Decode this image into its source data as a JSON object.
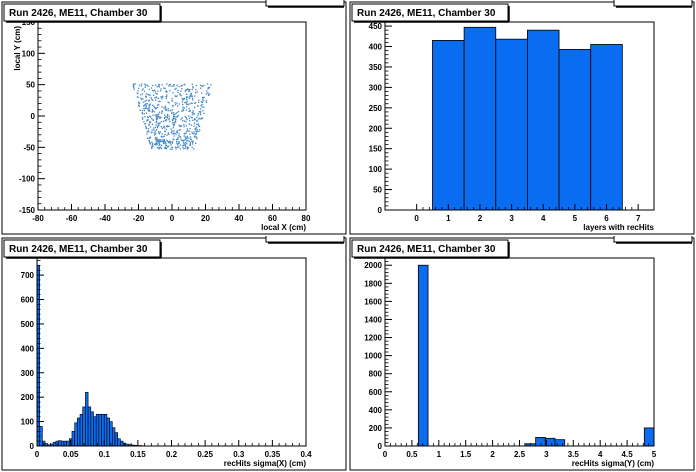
{
  "chart_data": [
    {
      "type": "scatter",
      "title": "Run 2426, ME11, Chamber 30",
      "xlabel": "local X (cm)",
      "ylabel": "local Y (cm)",
      "xlim": [
        -80,
        80
      ],
      "ylim": [
        -150,
        150
      ],
      "xticks": [
        -80,
        -60,
        -40,
        -20,
        0,
        20,
        40,
        60,
        80
      ],
      "yticks": [
        -150,
        -100,
        -50,
        0,
        50,
        100,
        150
      ],
      "stats_box": "recHitsXY",
      "grid": false,
      "point_color": "#3f86c9",
      "region": {
        "y_top": 53,
        "y_bottom": -52,
        "x_half_top": 24,
        "x_half_bottom": 13
      }
    },
    {
      "type": "bar",
      "title": "Run 2426, ME11, Chamber 30",
      "xlabel": "layers with recHits",
      "ylabel": "",
      "xlim": [
        -1,
        7.5
      ],
      "ylim": [
        0,
        460
      ],
      "xticks": [
        0,
        1,
        2,
        3,
        4,
        5,
        6,
        7
      ],
      "yticks": [
        0,
        50,
        100,
        150,
        200,
        250,
        300,
        350,
        400,
        450
      ],
      "stats_box": "nRecHits",
      "grid": false,
      "bin_edges": [
        0.5,
        1.5,
        2.5,
        3.5,
        4.5,
        5.5,
        6.5
      ],
      "values": [
        415,
        447,
        418,
        440,
        393,
        405
      ],
      "fill_color": "#0a6cf0"
    },
    {
      "type": "bar",
      "title": "Run 2426, ME11, Chamber 30",
      "xlabel": "recHits sigma(X) (cm)",
      "ylabel": "",
      "xlim": [
        0,
        0.4
      ],
      "ylim": [
        0,
        770
      ],
      "xticks": [
        0,
        0.05,
        0.1,
        0.15,
        0.2,
        0.25,
        0.3,
        0.35,
        0.4
      ],
      "yticks": [
        0,
        100,
        200,
        300,
        400,
        500,
        600,
        700
      ],
      "stats_box": "sigmaX",
      "grid": false,
      "bin_width": 0.004,
      "x_start": 0,
      "values": [
        740,
        80,
        20,
        10,
        5,
        8,
        15,
        20,
        22,
        20,
        20,
        20,
        30,
        60,
        95,
        115,
        130,
        160,
        220,
        160,
        140,
        120,
        130,
        130,
        130,
        130,
        115,
        100,
        75,
        55,
        30,
        20,
        12,
        8,
        6,
        4,
        3,
        2,
        2,
        1
      ],
      "fill_color": "#0a6cf0"
    },
    {
      "type": "bar",
      "title": "Run 2426, ME11, Chamber 30",
      "xlabel": "recHits sigma(Y) (cm)",
      "ylabel": "",
      "xlim": [
        0,
        5
      ],
      "ylim": [
        0,
        2080
      ],
      "xticks": [
        0,
        0.5,
        1,
        1.5,
        2,
        2.5,
        3,
        3.5,
        4,
        4.5,
        5
      ],
      "yticks": [
        0,
        200,
        400,
        600,
        800,
        1000,
        1200,
        1400,
        1600,
        1800,
        2000
      ],
      "stats_box": "sigmaY",
      "grid": false,
      "bins": [
        {
          "x0": 0.62,
          "x1": 0.8,
          "value": 2000
        },
        {
          "x0": 2.62,
          "x1": 2.8,
          "value": 25
        },
        {
          "x0": 2.8,
          "x1": 2.98,
          "value": 95
        },
        {
          "x0": 2.98,
          "x1": 3.16,
          "value": 85
        },
        {
          "x0": 3.16,
          "x1": 3.34,
          "value": 70
        },
        {
          "x0": 4.82,
          "x1": 5.0,
          "value": 200
        }
      ],
      "fill_color": "#0a6cf0"
    }
  ]
}
